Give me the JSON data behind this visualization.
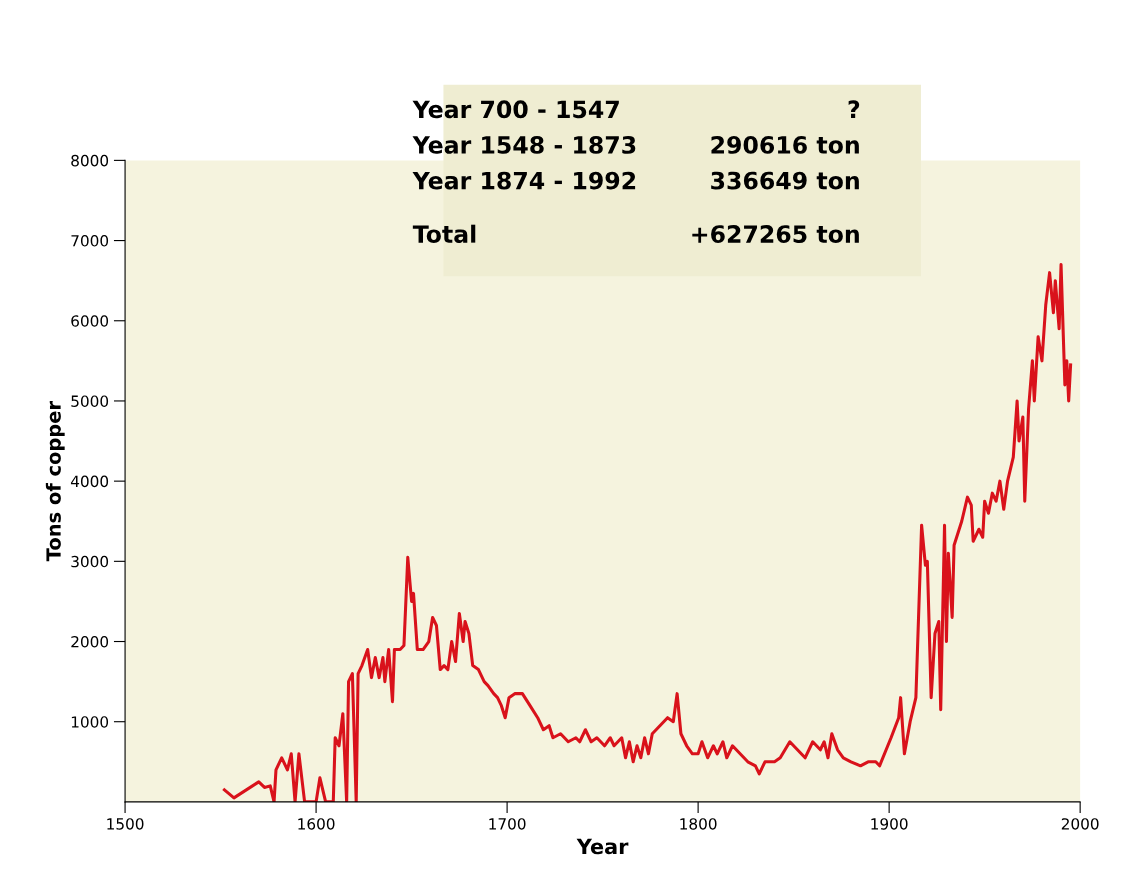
{
  "chart_data": {
    "type": "line",
    "xlabel": "Year",
    "ylabel": "Tons of copper",
    "annotations": [
      "Year 700 - 1547",
      "?",
      "Year 1548 - 1873",
      "290616 ton",
      "Year 1874 - 1992",
      "336649 ton",
      "Total",
      "+627265 ton"
    ],
    "xlim": [
      1500,
      2000
    ],
    "xticks": [
      1500,
      1600,
      1700,
      1800,
      1900,
      2000
    ],
    "ylim": [
      0,
      8000
    ],
    "yticks": [
      1000,
      2000,
      3000,
      4000,
      5000,
      6000,
      7000,
      8000
    ],
    "grid": false,
    "legend": false,
    "marker": "none",
    "line_style": "solid",
    "series": [
      {
        "color": "#d9121b",
        "x": [
          1552,
          1557,
          1570,
          1573,
          1576,
          1578,
          1579,
          1582,
          1585,
          1587,
          1589,
          1591,
          1594,
          1600,
          1602,
          1605,
          1609,
          1610,
          1612,
          1614,
          1616,
          1617,
          1619,
          1621,
          1622,
          1624,
          1627,
          1629,
          1631,
          1633,
          1635,
          1636,
          1638,
          1640,
          1641,
          1644,
          1646,
          1648,
          1650,
          1651,
          1653,
          1656,
          1659,
          1661,
          1663,
          1665,
          1667,
          1669,
          1671,
          1673,
          1675,
          1677,
          1678,
          1680,
          1682,
          1685,
          1688,
          1690,
          1693,
          1695,
          1697,
          1699,
          1701,
          1704,
          1708,
          1712,
          1716,
          1719,
          1722,
          1724,
          1728,
          1732,
          1736,
          1738,
          1741,
          1744,
          1747,
          1751,
          1754,
          1756,
          1760,
          1762,
          1764,
          1766,
          1768,
          1770,
          1772,
          1774,
          1776,
          1780,
          1784,
          1787,
          1789,
          1791,
          1794,
          1797,
          1800,
          1802,
          1805,
          1808,
          1810,
          1813,
          1815,
          1818,
          1822,
          1826,
          1830,
          1832,
          1835,
          1840,
          1843,
          1848,
          1852,
          1856,
          1860,
          1864,
          1866,
          1868,
          1870,
          1873,
          1876,
          1880,
          1885,
          1889,
          1893,
          1895,
          1901,
          1905,
          1906,
          1908,
          1911,
          1914,
          1917,
          1919,
          1920,
          1922,
          1924,
          1926,
          1927,
          1929,
          1930,
          1931,
          1933,
          1934,
          1938,
          1941,
          1943,
          1944,
          1947,
          1949,
          1950,
          1952,
          1954,
          1956,
          1958,
          1960,
          1962,
          1965,
          1967,
          1968,
          1970,
          1971,
          1973,
          1975,
          1976,
          1978,
          1980,
          1982,
          1984,
          1986,
          1987,
          1989,
          1990,
          1992,
          1993,
          1994,
          1995
        ],
        "values": [
          150,
          50,
          250,
          180,
          200,
          0,
          400,
          550,
          400,
          600,
          0,
          600,
          0,
          0,
          300,
          0,
          0,
          800,
          700,
          1100,
          0,
          1500,
          1600,
          0,
          1600,
          1700,
          1900,
          1550,
          1800,
          1550,
          1800,
          1500,
          1900,
          1250,
          1900,
          1900,
          1950,
          3050,
          2500,
          2600,
          1900,
          1900,
          2000,
          2300,
          2200,
          1650,
          1700,
          1650,
          2000,
          1750,
          2350,
          2000,
          2250,
          2100,
          1700,
          1650,
          1500,
          1450,
          1350,
          1300,
          1200,
          1050,
          1300,
          1350,
          1350,
          1200,
          1050,
          900,
          950,
          800,
          850,
          750,
          800,
          750,
          900,
          750,
          800,
          700,
          800,
          700,
          800,
          550,
          750,
          500,
          700,
          550,
          800,
          600,
          850,
          950,
          1050,
          1000,
          1350,
          850,
          700,
          600,
          600,
          750,
          550,
          700,
          600,
          750,
          550,
          700,
          600,
          500,
          450,
          350,
          500,
          500,
          550,
          750,
          650,
          550,
          750,
          650,
          750,
          550,
          850,
          650,
          550,
          500,
          450,
          500,
          500,
          450,
          800,
          1050,
          1300,
          600,
          1000,
          1300,
          3450,
          2950,
          3000,
          1300,
          2100,
          2250,
          1150,
          3450,
          2000,
          3100,
          2300,
          3200,
          3500,
          3800,
          3700,
          3250,
          3400,
          3300,
          3750,
          3600,
          3850,
          3750,
          4000,
          3650,
          4000,
          4300,
          5000,
          4500,
          4800,
          3750,
          4900,
          5500,
          5000,
          5800,
          5500,
          6200,
          6600,
          6100,
          6500,
          5900,
          6700,
          5200,
          5500,
          5000,
          5450
        ]
      }
    ]
  }
}
